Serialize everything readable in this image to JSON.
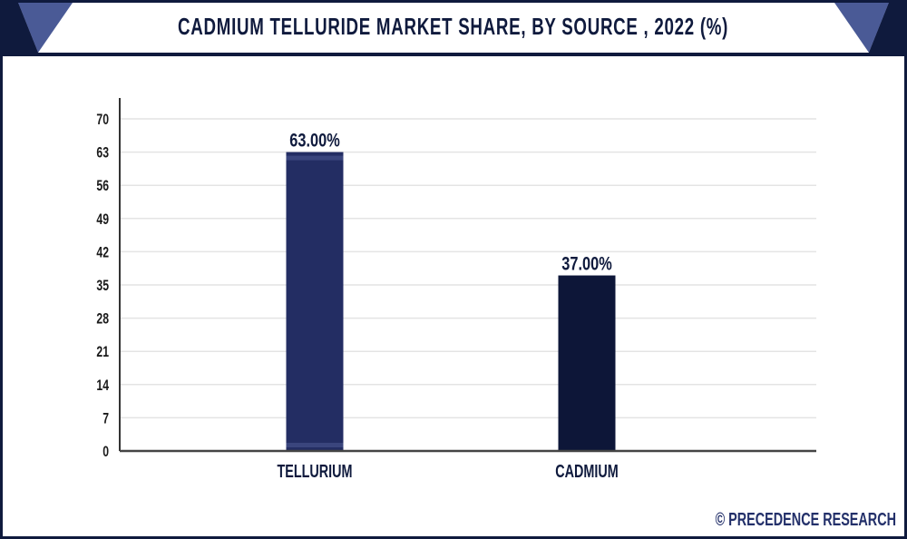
{
  "chart_data": {
    "type": "bar",
    "title": "CADMIUM TELLURIDE MARKET SHARE, BY SOURCE , 2022 (%)",
    "categories": [
      "TELLURIUM",
      "CADMIUM"
    ],
    "values": [
      63,
      37
    ],
    "data_labels": [
      "63.00%",
      "37.00%"
    ],
    "xlabel": "",
    "ylabel": "",
    "ylim": [
      0,
      70
    ],
    "yticks": [
      0,
      7,
      14,
      21,
      28,
      35,
      42,
      49,
      56,
      63,
      70
    ],
    "grid": true,
    "colors": [
      "#232d63",
      "#0d1638"
    ]
  },
  "credit": "© PRECEDENCE RESEARCH"
}
